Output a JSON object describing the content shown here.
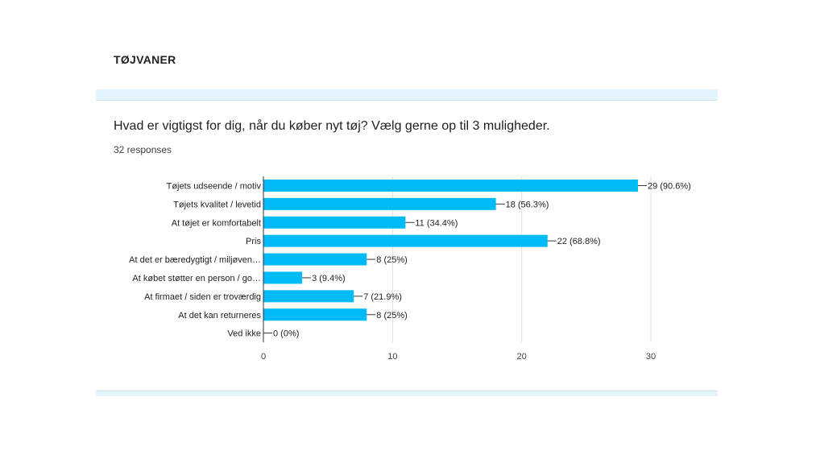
{
  "section": {
    "title": "TØJVANER"
  },
  "question": {
    "text": "Hvad er vigtigst for dig, når du køber nyt tøj? Vælg gerne op til 3 muligheder.",
    "responses": "32 responses"
  },
  "colors": {
    "bar": "#00bbf5",
    "band": "#e3f4fc",
    "grid": "#e0e0e0"
  },
  "chart_data": {
    "type": "bar",
    "orientation": "horizontal",
    "categories": [
      "Tøjets udseende / motiv",
      "Tøjets kvalitet / levetid",
      "At tøjet er komfortabelt",
      "Pris",
      "At det er bæredygtigt / miljøven…",
      "At købet støtter en person / go…",
      "At firmaet / siden er troværdig",
      "At det kan returneres",
      "Ved ikke"
    ],
    "values": [
      29,
      18,
      11,
      22,
      8,
      3,
      7,
      8,
      0
    ],
    "value_labels": [
      "29 (90.6%)",
      "18 (56.3%)",
      "11 (34.4%)",
      "22 (68.8%)",
      "8 (25%)",
      "3 (9.4%)",
      "7 (21.9%)",
      "8 (25%)",
      "0 (0%)"
    ],
    "xlim": [
      0,
      30
    ],
    "xticks": [
      0,
      10,
      20,
      30
    ],
    "grid": true,
    "title": "",
    "xlabel": "",
    "ylabel": ""
  }
}
